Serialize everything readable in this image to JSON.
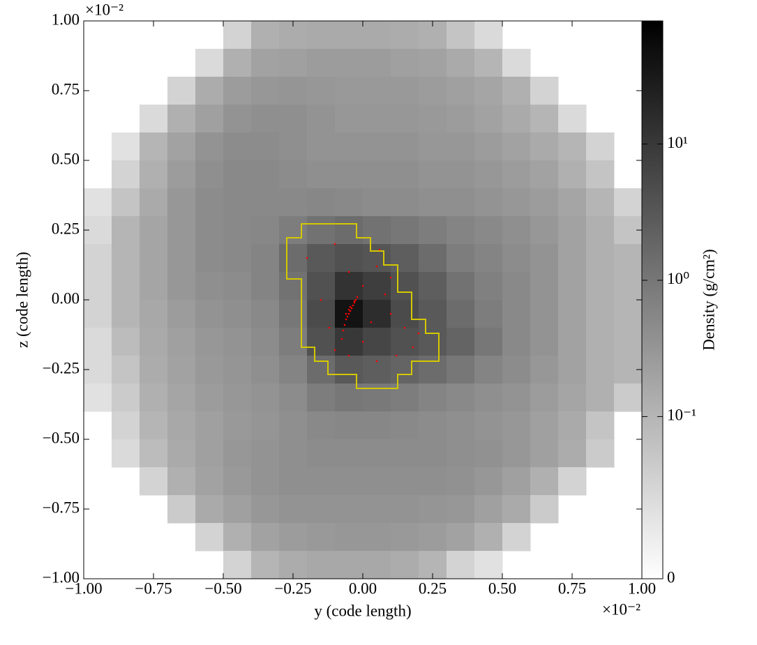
{
  "chart_data": {
    "type": "heatmap",
    "xlabel": "y  (code length)",
    "ylabel": "z  (code length)",
    "x_multiplier": "×10⁻²",
    "y_multiplier": "×10⁻²",
    "xlim": [
      -1,
      1
    ],
    "ylim": [
      -1,
      1
    ],
    "xticks": [
      {
        "value": -1,
        "label": "−1.00"
      },
      {
        "value": -0.75,
        "label": "−0.75"
      },
      {
        "value": -0.5,
        "label": "−0.50"
      },
      {
        "value": -0.25,
        "label": "−0.25"
      },
      {
        "value": 0,
        "label": "0.00"
      },
      {
        "value": 0.25,
        "label": "0.25"
      },
      {
        "value": 0.5,
        "label": "0.50"
      },
      {
        "value": 0.75,
        "label": "0.75"
      },
      {
        "value": 1,
        "label": "1.00"
      }
    ],
    "yticks": [
      {
        "value": -1,
        "label": "−1.00"
      },
      {
        "value": -0.75,
        "label": "−0.75"
      },
      {
        "value": -0.5,
        "label": "−0.50"
      },
      {
        "value": -0.25,
        "label": "−0.25"
      },
      {
        "value": 0,
        "label": "0.00"
      },
      {
        "value": 0.25,
        "label": "0.25"
      },
      {
        "value": 0.5,
        "label": "0.50"
      },
      {
        "value": 0.75,
        "label": "0.75"
      },
      {
        "value": 1,
        "label": "1.00"
      }
    ],
    "colorbar": {
      "label": "Density  (g/cm²)",
      "scale": "symlog",
      "linthresh": 0.1,
      "linscale": 1.19,
      "lim": [
        0,
        80
      ],
      "colormap": "gray_r",
      "ticks": [
        0,
        {
          "value": 0.1,
          "label": "10⁻¹"
        },
        {
          "value": 1,
          "label": "10⁰"
        },
        {
          "value": 10,
          "label": "10¹"
        }
      ]
    },
    "density": [
      [
        null,
        null,
        null,
        null,
        null,
        0.06,
        0.12,
        0.14,
        0.15,
        0.15,
        0.15,
        0.14,
        0.12,
        0.08,
        0.05,
        null,
        null,
        null,
        null,
        null
      ],
      [
        null,
        null,
        null,
        null,
        0.05,
        0.12,
        0.2,
        0.22,
        0.25,
        0.25,
        0.25,
        0.22,
        0.2,
        0.15,
        0.1,
        0.05,
        null,
        null,
        null,
        null
      ],
      [
        null,
        null,
        null,
        0.06,
        0.14,
        0.25,
        0.3,
        0.32,
        0.3,
        0.28,
        0.28,
        0.28,
        0.25,
        0.22,
        0.18,
        0.12,
        0.06,
        null,
        null,
        null
      ],
      [
        null,
        null,
        0.05,
        0.12,
        0.22,
        0.35,
        0.4,
        0.4,
        0.35,
        0.3,
        0.3,
        0.3,
        0.28,
        0.25,
        0.2,
        0.15,
        0.1,
        0.05,
        null,
        null
      ],
      [
        null,
        0.04,
        0.1,
        0.2,
        0.35,
        0.45,
        0.45,
        0.4,
        0.35,
        0.35,
        0.35,
        0.35,
        0.3,
        0.3,
        0.25,
        0.2,
        0.15,
        0.1,
        0.06,
        null
      ],
      [
        null,
        0.06,
        0.12,
        0.25,
        0.4,
        0.5,
        0.5,
        0.45,
        0.4,
        0.4,
        0.4,
        0.4,
        0.35,
        0.35,
        0.3,
        0.25,
        0.2,
        0.12,
        0.08,
        null
      ],
      [
        0.04,
        0.08,
        0.15,
        0.3,
        0.45,
        0.5,
        0.5,
        0.5,
        0.55,
        0.5,
        0.45,
        0.45,
        0.4,
        0.4,
        0.35,
        0.3,
        0.25,
        0.18,
        0.1,
        0.06
      ],
      [
        0.05,
        0.1,
        0.18,
        0.3,
        0.45,
        0.5,
        0.55,
        0.8,
        1.2,
        1.5,
        1.2,
        1.0,
        0.8,
        0.6,
        0.5,
        0.4,
        0.3,
        0.2,
        0.12,
        0.08
      ],
      [
        0.06,
        0.1,
        0.18,
        0.3,
        0.45,
        0.5,
        0.6,
        1.5,
        3,
        4,
        3.5,
        2.5,
        1.5,
        0.8,
        0.6,
        0.45,
        0.35,
        0.2,
        0.12,
        0.1
      ],
      [
        0.06,
        0.1,
        0.18,
        0.3,
        0.4,
        0.45,
        0.6,
        1.2,
        4,
        12,
        8,
        4,
        2.5,
        1.2,
        0.7,
        0.5,
        0.35,
        0.2,
        0.12,
        0.1
      ],
      [
        0.06,
        0.1,
        0.16,
        0.25,
        0.35,
        0.4,
        0.5,
        1,
        5,
        40,
        15,
        5,
        3,
        1.5,
        0.8,
        0.5,
        0.35,
        0.2,
        0.12,
        0.1
      ],
      [
        0.05,
        0.09,
        0.15,
        0.22,
        0.3,
        0.35,
        0.45,
        0.8,
        4,
        10,
        6,
        4,
        3,
        2,
        1,
        0.5,
        0.35,
        0.2,
        0.12,
        0.1
      ],
      [
        0.05,
        0.08,
        0.14,
        0.2,
        0.28,
        0.32,
        0.4,
        0.6,
        1.5,
        3,
        2.5,
        2,
        1.5,
        1,
        0.6,
        0.45,
        0.3,
        0.2,
        0.12,
        0.1
      ],
      [
        0.04,
        0.07,
        0.12,
        0.18,
        0.25,
        0.3,
        0.35,
        0.45,
        0.8,
        1,
        0.9,
        0.8,
        0.6,
        0.5,
        0.4,
        0.35,
        0.25,
        0.18,
        0.12,
        0.07
      ],
      [
        null,
        0.06,
        0.1,
        0.16,
        0.22,
        0.28,
        0.32,
        0.4,
        0.5,
        0.55,
        0.55,
        0.5,
        0.45,
        0.4,
        0.35,
        0.3,
        0.22,
        0.15,
        0.08,
        null
      ],
      [
        null,
        0.05,
        0.09,
        0.15,
        0.22,
        0.3,
        0.35,
        0.4,
        0.45,
        0.45,
        0.45,
        0.45,
        0.45,
        0.4,
        0.38,
        0.3,
        0.22,
        0.14,
        0.07,
        null
      ],
      [
        null,
        null,
        0.06,
        0.12,
        0.2,
        0.28,
        0.35,
        0.4,
        0.4,
        0.4,
        0.4,
        0.4,
        0.4,
        0.38,
        0.3,
        0.22,
        0.12,
        0.06,
        null,
        null
      ],
      [
        null,
        null,
        null,
        0.07,
        0.15,
        0.22,
        0.3,
        0.35,
        0.35,
        0.35,
        0.35,
        0.35,
        0.32,
        0.3,
        0.22,
        0.15,
        0.07,
        null,
        null,
        null
      ],
      [
        null,
        null,
        null,
        null,
        0.06,
        0.12,
        0.2,
        0.25,
        0.28,
        0.3,
        0.3,
        0.28,
        0.25,
        0.2,
        0.12,
        0.06,
        null,
        null,
        null,
        null
      ],
      [
        null,
        null,
        null,
        null,
        null,
        0.06,
        0.1,
        0.14,
        0.16,
        0.16,
        0.16,
        0.14,
        0.1,
        0.06,
        0.04,
        null,
        null,
        null,
        null,
        null
      ]
    ],
    "contour": {
      "color": "#d4c800",
      "y": [
        -0.2725,
        -0.22,
        -0.22,
        -0.0225,
        -0.0225,
        0.0275,
        0.0275,
        0.075,
        0.075,
        0.125,
        0.125,
        0.175,
        0.175,
        0.225,
        0.225,
        0.2725,
        0.2725,
        0.175,
        0.175,
        0.125,
        0.125,
        -0.0225,
        -0.0225,
        -0.125,
        -0.125,
        -0.1725,
        -0.1725,
        -0.22,
        -0.22,
        -0.2725
      ],
      "z": [
        0.2225,
        0.2225,
        0.2725,
        0.2725,
        0.2225,
        0.2225,
        0.175,
        0.175,
        0.125,
        0.125,
        0.0275,
        0.0275,
        -0.07,
        -0.07,
        -0.12,
        -0.12,
        -0.22,
        -0.22,
        -0.2675,
        -0.2675,
        -0.3175,
        -0.3175,
        -0.2675,
        -0.2675,
        -0.22,
        -0.22,
        -0.17,
        -0.17,
        0.075,
        0.075
      ]
    },
    "particles": {
      "color": "#ff0000",
      "y": [
        -0.02,
        -0.025,
        -0.03,
        -0.035,
        -0.04,
        -0.045,
        -0.05,
        -0.055,
        -0.06,
        -0.065,
        -0.07,
        -0.075,
        -0.03,
        -0.045,
        -0.05,
        -0.06,
        -0.1,
        -0.2,
        0.05,
        0.0,
        0.08,
        0.1,
        0.15,
        0.2,
        0.12,
        0.05,
        -0.05,
        -0.12,
        -0.15,
        0.03,
        -0.1,
        0.18,
        0.06,
        -0.05,
        0.0,
        0.1
      ],
      "z": [
        0.01,
        0.0,
        -0.01,
        -0.02,
        -0.03,
        -0.04,
        -0.05,
        -0.06,
        -0.07,
        -0.09,
        -0.11,
        -0.14,
        -0.005,
        -0.025,
        -0.035,
        -0.05,
        0.2,
        0.15,
        0.12,
        0.05,
        0.02,
        -0.05,
        -0.1,
        -0.12,
        -0.2,
        -0.22,
        -0.2,
        -0.1,
        0.0,
        -0.08,
        -0.18,
        -0.17,
        0.18,
        0.1,
        -0.15,
        0.08
      ]
    }
  }
}
